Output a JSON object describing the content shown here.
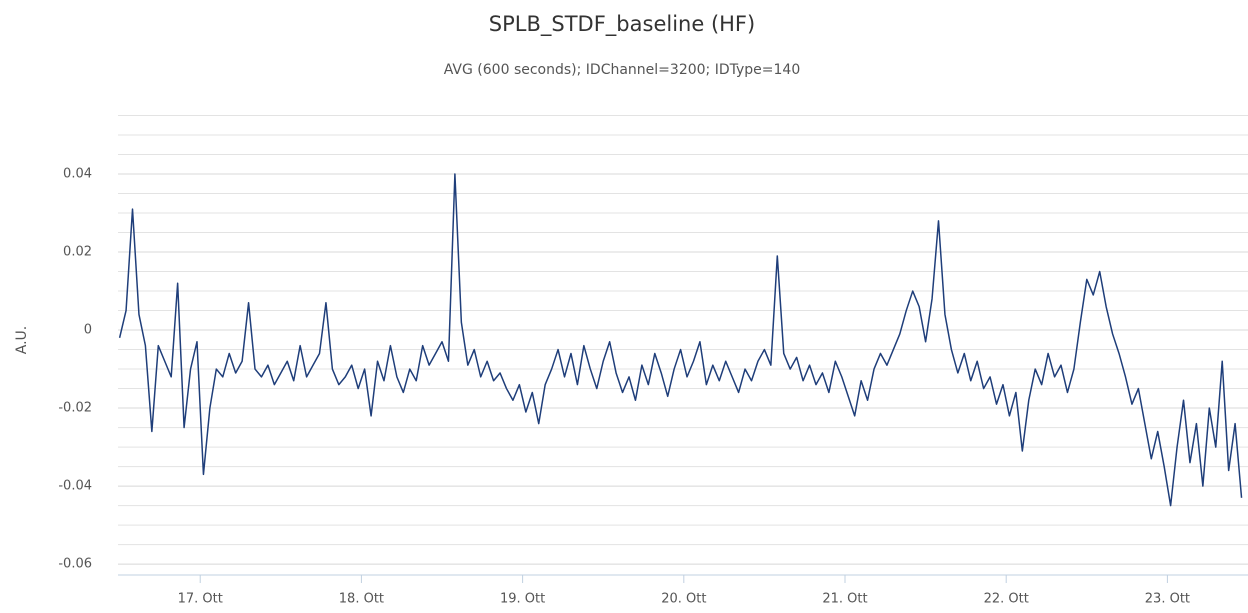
{
  "chart_data": {
    "type": "line",
    "title": "SPLB_STDF_baseline (HF)",
    "subtitle": "AVG (600 seconds); IDChannel=3200; IDType=140",
    "y_label": "A.U.",
    "xlim": [
      16.49,
      23.5
    ],
    "xticks": [
      {
        "value": 17,
        "label": "17. Ott"
      },
      {
        "value": 18,
        "label": "18. Ott"
      },
      {
        "value": 19,
        "label": "19. Ott"
      },
      {
        "value": 20,
        "label": "20. Ott"
      },
      {
        "value": 21,
        "label": "21. Ott"
      },
      {
        "value": 22,
        "label": "22. Ott"
      },
      {
        "value": 23,
        "label": "23. Ott"
      }
    ],
    "ylim": [
      -0.0628,
      0.0577
    ],
    "yticks": [
      -0.06,
      -0.04,
      -0.02,
      0,
      0.02,
      0.04
    ],
    "grid": true,
    "y_minor_grid": [
      -0.055,
      -0.05,
      -0.045,
      -0.035,
      -0.03,
      -0.025,
      -0.015,
      -0.01,
      -0.005,
      0.005,
      0.01,
      0.015,
      0.025,
      0.03,
      0.035,
      0.045,
      0.05,
      0.055
    ],
    "x": [
      16.5,
      16.54,
      16.58,
      16.62,
      16.66,
      16.7,
      16.74,
      16.78,
      16.82,
      16.86,
      16.9,
      16.94,
      16.98,
      17.02,
      17.06,
      17.1,
      17.14,
      17.18,
      17.22,
      17.26,
      17.3,
      17.34,
      17.38,
      17.42,
      17.46,
      17.5,
      17.54,
      17.58,
      17.62,
      17.66,
      17.7,
      17.74,
      17.78,
      17.82,
      17.86,
      17.9,
      17.94,
      17.98,
      18.02,
      18.06,
      18.1,
      18.14,
      18.18,
      18.22,
      18.26,
      18.3,
      18.34,
      18.38,
      18.42,
      18.46,
      18.5,
      18.54,
      18.58,
      18.62,
      18.66,
      18.7,
      18.74,
      18.78,
      18.82,
      18.86,
      18.9,
      18.94,
      18.98,
      19.02,
      19.06,
      19.1,
      19.14,
      19.18,
      19.22,
      19.26,
      19.3,
      19.34,
      19.38,
      19.42,
      19.46,
      19.5,
      19.54,
      19.58,
      19.62,
      19.66,
      19.7,
      19.74,
      19.78,
      19.82,
      19.86,
      19.9,
      19.94,
      19.98,
      20.02,
      20.06,
      20.1,
      20.14,
      20.18,
      20.22,
      20.26,
      20.3,
      20.34,
      20.38,
      20.42,
      20.46,
      20.5,
      20.54,
      20.58,
      20.62,
      20.66,
      20.7,
      20.74,
      20.78,
      20.82,
      20.86,
      20.9,
      20.94,
      20.98,
      21.02,
      21.06,
      21.1,
      21.14,
      21.18,
      21.22,
      21.26,
      21.3,
      21.34,
      21.38,
      21.42,
      21.46,
      21.5,
      21.54,
      21.58,
      21.62,
      21.66,
      21.7,
      21.74,
      21.78,
      21.82,
      21.86,
      21.9,
      21.94,
      21.98,
      22.02,
      22.06,
      22.1,
      22.14,
      22.18,
      22.22,
      22.26,
      22.3,
      22.34,
      22.38,
      22.42,
      22.46,
      22.5,
      22.54,
      22.58,
      22.62,
      22.66,
      22.7,
      22.74,
      22.78,
      22.82,
      22.86,
      22.9,
      22.94,
      22.98,
      23.02,
      23.06,
      23.1,
      23.14,
      23.18,
      23.22,
      23.26,
      23.3,
      23.34,
      23.38,
      23.42,
      23.46
    ],
    "series": [
      {
        "color": "#1f3e7a",
        "values": [
          -0.002,
          0.005,
          0.031,
          0.004,
          -0.004,
          -0.026,
          -0.004,
          -0.008,
          -0.012,
          0.012,
          -0.025,
          -0.01,
          -0.003,
          -0.037,
          -0.02,
          -0.01,
          -0.012,
          -0.006,
          -0.011,
          -0.008,
          0.007,
          -0.01,
          -0.012,
          -0.009,
          -0.014,
          -0.011,
          -0.008,
          -0.013,
          -0.004,
          -0.012,
          -0.009,
          -0.006,
          0.007,
          -0.01,
          -0.014,
          -0.012,
          -0.009,
          -0.015,
          -0.01,
          -0.022,
          -0.008,
          -0.013,
          -0.004,
          -0.012,
          -0.016,
          -0.01,
          -0.013,
          -0.004,
          -0.009,
          -0.006,
          -0.003,
          -0.008,
          0.04,
          0.002,
          -0.009,
          -0.005,
          -0.012,
          -0.008,
          -0.013,
          -0.011,
          -0.015,
          -0.018,
          -0.014,
          -0.021,
          -0.016,
          -0.024,
          -0.014,
          -0.01,
          -0.005,
          -0.012,
          -0.006,
          -0.014,
          -0.004,
          -0.01,
          -0.015,
          -0.008,
          -0.003,
          -0.011,
          -0.016,
          -0.012,
          -0.018,
          -0.009,
          -0.014,
          -0.006,
          -0.011,
          -0.017,
          -0.01,
          -0.005,
          -0.012,
          -0.008,
          -0.003,
          -0.014,
          -0.009,
          -0.013,
          -0.008,
          -0.012,
          -0.016,
          -0.01,
          -0.013,
          -0.008,
          -0.005,
          -0.009,
          0.019,
          -0.006,
          -0.01,
          -0.007,
          -0.013,
          -0.009,
          -0.014,
          -0.011,
          -0.016,
          -0.008,
          -0.012,
          -0.017,
          -0.022,
          -0.013,
          -0.018,
          -0.01,
          -0.006,
          -0.009,
          -0.005,
          -0.001,
          0.005,
          0.01,
          0.006,
          -0.003,
          0.008,
          0.028,
          0.004,
          -0.005,
          -0.011,
          -0.006,
          -0.013,
          -0.008,
          -0.015,
          -0.012,
          -0.019,
          -0.014,
          -0.022,
          -0.016,
          -0.031,
          -0.018,
          -0.01,
          -0.014,
          -0.006,
          -0.012,
          -0.009,
          -0.016,
          -0.01,
          0.002,
          0.013,
          0.009,
          0.015,
          0.006,
          -0.001,
          -0.006,
          -0.012,
          -0.019,
          -0.015,
          -0.024,
          -0.033,
          -0.026,
          -0.035,
          -0.045,
          -0.03,
          -0.018,
          -0.034,
          -0.024,
          -0.04,
          -0.02,
          -0.03,
          -0.008,
          -0.036,
          -0.024,
          -0.043
        ]
      }
    ]
  }
}
